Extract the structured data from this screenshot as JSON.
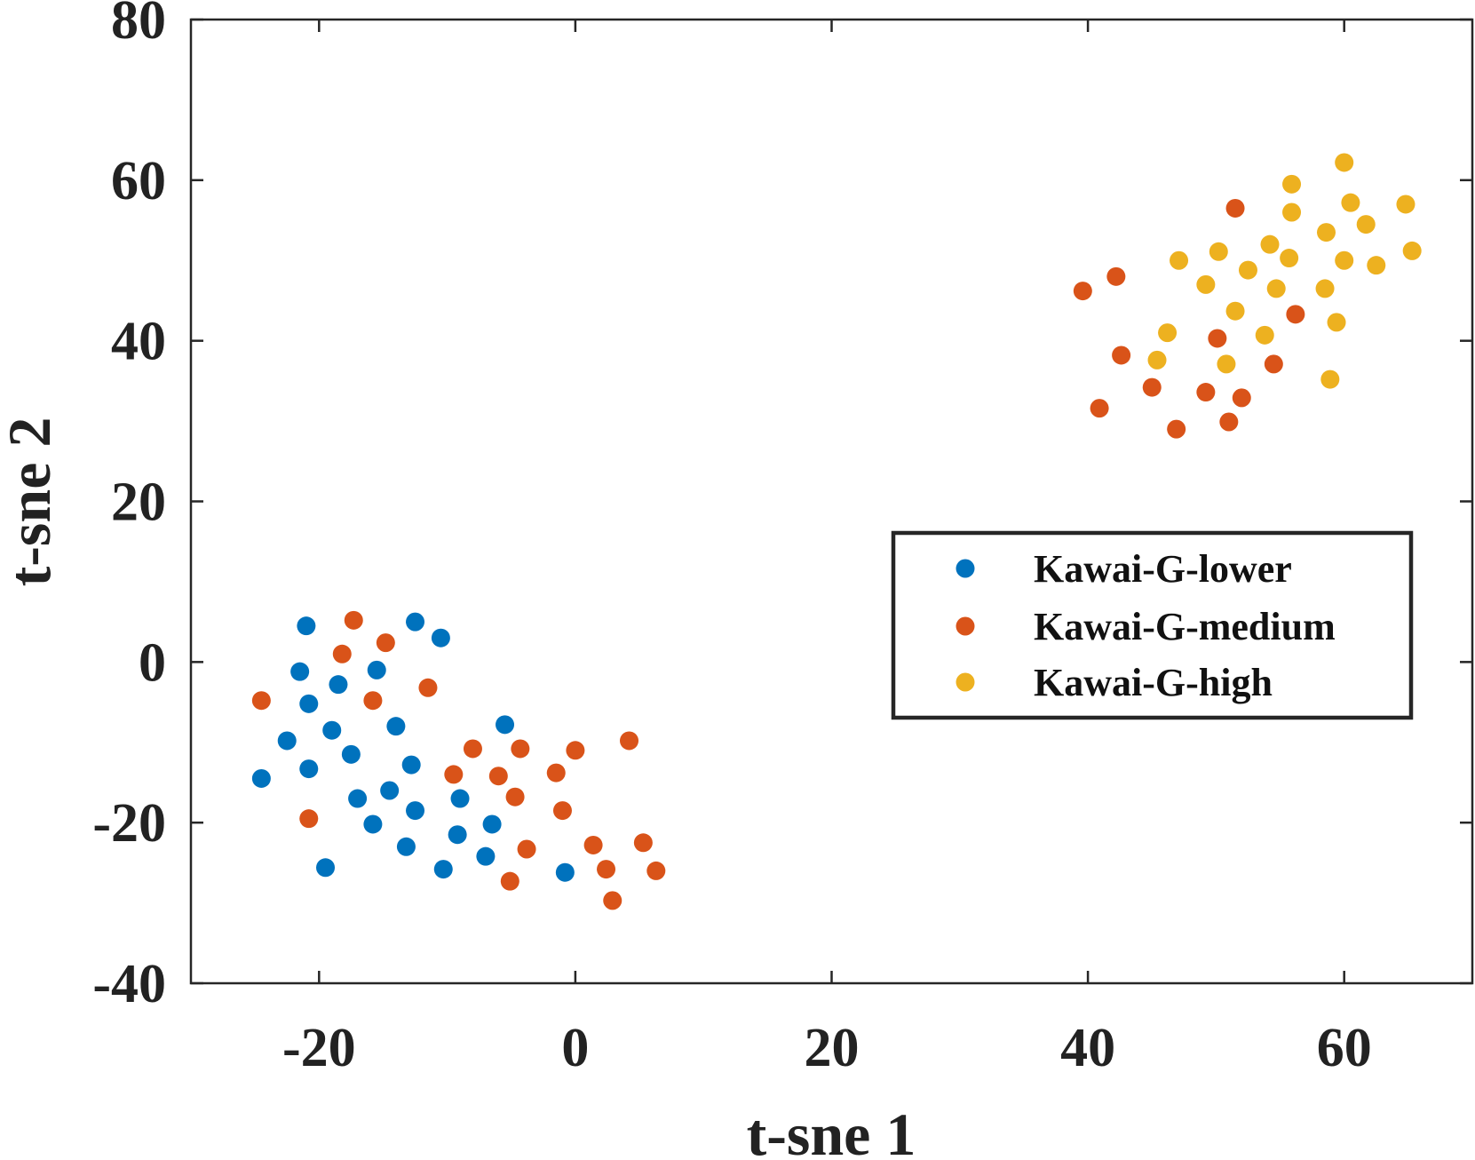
{
  "chart_data": {
    "type": "scatter",
    "title": "",
    "xlabel": "t-sne 1",
    "ylabel": "t-sne 2",
    "xlim": [
      -30,
      70
    ],
    "ylim": [
      -40,
      80
    ],
    "xticks": [
      -20,
      0,
      20,
      40,
      60
    ],
    "yticks": [
      -40,
      -20,
      0,
      20,
      40,
      60,
      80
    ],
    "xtick_labels": [
      "-20",
      "0",
      "20",
      "40",
      "60"
    ],
    "ytick_labels": [
      "-40",
      "-20",
      "0",
      "20",
      "40",
      "60",
      "80"
    ],
    "grid": false,
    "legend_position": "center-right",
    "series": [
      {
        "name": "Kawai-G-lower",
        "color": "#0072BD",
        "points": [
          [
            -21,
            4.5
          ],
          [
            -12.5,
            5
          ],
          [
            -10.5,
            3
          ],
          [
            -21.5,
            -1.2
          ],
          [
            -18.5,
            -2.8
          ],
          [
            -15.5,
            -1
          ],
          [
            -20.8,
            -5.2
          ],
          [
            -19,
            -8.5
          ],
          [
            -14,
            -8
          ],
          [
            -22.5,
            -9.8
          ],
          [
            -17.5,
            -11.5
          ],
          [
            -24.5,
            -14.5
          ],
          [
            -20.8,
            -13.3
          ],
          [
            -12.8,
            -12.8
          ],
          [
            -5.5,
            -7.8
          ],
          [
            -17,
            -17
          ],
          [
            -14.5,
            -16
          ],
          [
            -9,
            -17
          ],
          [
            -12.5,
            -18.5
          ],
          [
            -15.8,
            -20.2
          ],
          [
            -6.5,
            -20.2
          ],
          [
            -9.2,
            -21.5
          ],
          [
            -13.2,
            -23
          ],
          [
            -19.5,
            -25.6
          ],
          [
            -10.3,
            -25.8
          ],
          [
            -7,
            -24.2
          ],
          [
            -0.8,
            -26.2
          ]
        ]
      },
      {
        "name": "Kawai-G-medium",
        "color": "#D95319",
        "points": [
          [
            -17.3,
            5.2
          ],
          [
            -18.2,
            1
          ],
          [
            -14.8,
            2.4
          ],
          [
            -24.5,
            -4.8
          ],
          [
            -15.8,
            -4.8
          ],
          [
            -11.5,
            -3.2
          ],
          [
            -8,
            -10.8
          ],
          [
            -4.3,
            -10.8
          ],
          [
            0,
            -11
          ],
          [
            4.2,
            -9.8
          ],
          [
            -9.5,
            -14
          ],
          [
            -6,
            -14.2
          ],
          [
            -1.5,
            -13.8
          ],
          [
            -4.7,
            -16.8
          ],
          [
            -1,
            -18.5
          ],
          [
            -20.8,
            -19.5
          ],
          [
            1.4,
            -22.8
          ],
          [
            -3.8,
            -23.3
          ],
          [
            5.3,
            -22.5
          ],
          [
            2.4,
            -25.8
          ],
          [
            6.3,
            -26
          ],
          [
            -5.1,
            -27.3
          ],
          [
            2.9,
            -29.7
          ],
          [
            51.5,
            56.5
          ],
          [
            39.6,
            46.2
          ],
          [
            42.2,
            48
          ],
          [
            56.2,
            43.3
          ],
          [
            42.6,
            38.2
          ],
          [
            50.1,
            40.3
          ],
          [
            54.5,
            37.1
          ],
          [
            45,
            34.2
          ],
          [
            49.2,
            33.6
          ],
          [
            52,
            32.9
          ],
          [
            40.9,
            31.6
          ],
          [
            46.9,
            29
          ],
          [
            51,
            29.9
          ]
        ]
      },
      {
        "name": "Kawai-G-high",
        "color": "#EDB120",
        "points": [
          [
            60,
            62.2
          ],
          [
            55.9,
            59.5
          ],
          [
            60.5,
            57.2
          ],
          [
            64.8,
            57
          ],
          [
            55.9,
            56
          ],
          [
            61.7,
            54.5
          ],
          [
            58.6,
            53.5
          ],
          [
            54.2,
            52
          ],
          [
            50.2,
            51.1
          ],
          [
            55.7,
            50.3
          ],
          [
            60,
            50
          ],
          [
            65.3,
            51.2
          ],
          [
            47.1,
            50
          ],
          [
            52.5,
            48.8
          ],
          [
            62.5,
            49.4
          ],
          [
            49.2,
            47
          ],
          [
            54.7,
            46.5
          ],
          [
            58.5,
            46.5
          ],
          [
            51.5,
            43.7
          ],
          [
            59.4,
            42.3
          ],
          [
            46.2,
            41
          ],
          [
            53.8,
            40.7
          ],
          [
            45.4,
            37.6
          ],
          [
            50.8,
            37.1
          ],
          [
            58.9,
            35.2
          ]
        ]
      }
    ]
  }
}
